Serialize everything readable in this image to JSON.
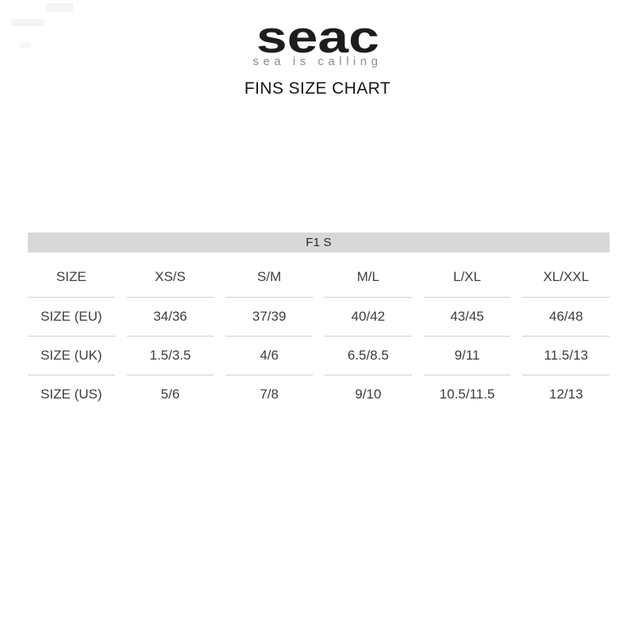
{
  "brand": {
    "logo_text": "seac",
    "tagline": "sea is calling"
  },
  "page_title": "FINS SIZE CHART",
  "size_chart": {
    "model": "F1 S",
    "columns": [
      "SIZE",
      "XS/S",
      "S/M",
      "M/L",
      "L/XL",
      "XL/XXL"
    ],
    "rows": [
      {
        "label": "SIZE (EU)",
        "values": [
          "34/36",
          "37/39",
          "40/42",
          "43/45",
          "46/48"
        ]
      },
      {
        "label": "SIZE (UK)",
        "values": [
          "1.5/3.5",
          "4/6",
          "6.5/8.5",
          "9/11",
          "11.5/13"
        ]
      },
      {
        "label": "SIZE (US)",
        "values": [
          "5/6",
          "7/8",
          "9/10",
          "10.5/11.5",
          "12/13"
        ]
      }
    ]
  },
  "colors": {
    "background": "#ffffff",
    "logo": "#1d1d1b",
    "tagline": "#8c8c8c",
    "title_text": "#161616",
    "model_bar_bg": "#d8d8d8",
    "divider": "#cfcfcf",
    "table_text": "#3c3c3c"
  }
}
